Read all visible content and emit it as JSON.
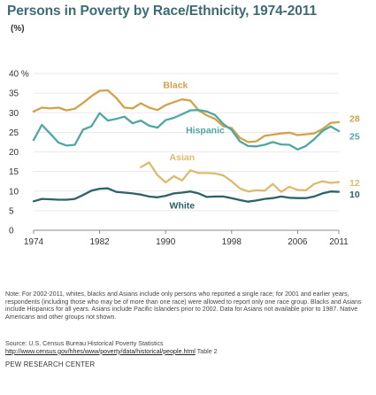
{
  "title": "Persons in Poverty by Race/Ethnicity, 1974-2011",
  "unit": "(%)",
  "note": "Note: For 2002-2011, whites, blacks and Asians include only persons who reported a single race; for 2001 and earlier years, respondents (including those who may be of more than one race) were allowed to report only one race group. Blacks and Asians include Hispanics for all years. Asians include Pacific Islanders prior to 2002. Data for Asians not available prior to 1987. Native Americans and other groups not shown.",
  "source": {
    "prefix": "Source: U.S. Census Bureau Historical Poverty Statistics",
    "url": "http://www.census.gov/hhes/www/poverty/data/historical/people.html",
    "suffix": " Table 2"
  },
  "org": "PEW RESEARCH CENTER",
  "colors": {
    "black": "#d2a24a",
    "hispanic": "#4ea7a2",
    "asian": "#dcbb6e",
    "white": "#2d6365",
    "grid": "#e3e3e3",
    "axis": "#888888"
  },
  "chart_data": {
    "type": "line",
    "title": "Persons in Poverty by Race/Ethnicity, 1974-2011",
    "ylabel": "(%)",
    "xlim": [
      1974,
      2011
    ],
    "ylim": [
      0,
      40
    ],
    "yticks": [
      0,
      5,
      10,
      15,
      20,
      25,
      30,
      35,
      40
    ],
    "ytick_labels": [
      "0",
      "5",
      "10",
      "15",
      "20",
      "25",
      "30",
      "35",
      "40 %"
    ],
    "xticks": [
      1974,
      1982,
      1990,
      1998,
      2006,
      2011
    ],
    "xtick_labels": [
      "1974",
      "1982",
      "1990",
      "1998",
      "2006",
      "2011"
    ],
    "grid": true,
    "series": [
      {
        "name": "Black",
        "key": "black",
        "x": [
          1974,
          1975,
          1976,
          1977,
          1978,
          1979,
          1980,
          1981,
          1982,
          1983,
          1984,
          1985,
          1986,
          1987,
          1988,
          1989,
          1990,
          1991,
          1992,
          1993,
          1994,
          1995,
          1996,
          1997,
          1998,
          1999,
          2000,
          2001,
          2002,
          2003,
          2004,
          2005,
          2006,
          2007,
          2008,
          2009,
          2010,
          2011
        ],
        "y": [
          30.3,
          31.3,
          31.1,
          31.3,
          30.6,
          31.0,
          32.5,
          34.2,
          35.6,
          35.7,
          33.8,
          31.3,
          31.1,
          32.4,
          31.3,
          30.7,
          31.9,
          32.7,
          33.4,
          33.1,
          30.6,
          29.3,
          28.4,
          26.5,
          26.1,
          23.6,
          22.5,
          22.7,
          24.1,
          24.4,
          24.7,
          24.9,
          24.3,
          24.5,
          24.7,
          25.8,
          27.4,
          27.6
        ],
        "end_label": "28"
      },
      {
        "name": "Hispanic",
        "key": "hispanic",
        "x": [
          1974,
          1975,
          1976,
          1977,
          1978,
          1979,
          1980,
          1981,
          1982,
          1983,
          1984,
          1985,
          1986,
          1987,
          1988,
          1989,
          1990,
          1991,
          1992,
          1993,
          1994,
          1995,
          1996,
          1997,
          1998,
          1999,
          2000,
          2001,
          2002,
          2003,
          2004,
          2005,
          2006,
          2007,
          2008,
          2009,
          2010,
          2011
        ],
        "y": [
          23.0,
          26.9,
          24.7,
          22.4,
          21.6,
          21.8,
          25.7,
          26.5,
          29.9,
          28.0,
          28.4,
          29.0,
          27.3,
          28.0,
          26.7,
          26.2,
          28.1,
          28.7,
          29.6,
          30.6,
          30.7,
          30.3,
          29.4,
          27.1,
          25.6,
          22.7,
          21.5,
          21.4,
          21.8,
          22.5,
          21.9,
          21.8,
          20.6,
          21.5,
          23.2,
          25.3,
          26.5,
          25.3
        ],
        "end_label": "25"
      },
      {
        "name": "Asian",
        "key": "asian",
        "x": [
          1987,
          1988,
          1989,
          1990,
          1991,
          1992,
          1993,
          1994,
          1995,
          1996,
          1997,
          1998,
          1999,
          2000,
          2001,
          2002,
          2003,
          2004,
          2005,
          2006,
          2007,
          2008,
          2009,
          2010,
          2011
        ],
        "y": [
          16.1,
          17.3,
          14.1,
          12.2,
          13.8,
          12.7,
          15.3,
          14.6,
          14.6,
          14.5,
          14.0,
          12.5,
          10.7,
          9.9,
          10.2,
          10.1,
          11.8,
          9.8,
          11.1,
          10.3,
          10.2,
          11.8,
          12.5,
          12.1,
          12.3
        ],
        "end_label": "12"
      },
      {
        "name": "White",
        "key": "white",
        "x": [
          1974,
          1975,
          1976,
          1977,
          1978,
          1979,
          1980,
          1981,
          1982,
          1983,
          1984,
          1985,
          1986,
          1987,
          1988,
          1989,
          1990,
          1991,
          1992,
          1993,
          1994,
          1995,
          1996,
          1997,
          1998,
          1999,
          2000,
          2001,
          2002,
          2003,
          2004,
          2005,
          2006,
          2007,
          2008,
          2009,
          2010,
          2011
        ],
        "y": [
          7.4,
          8.0,
          7.9,
          7.8,
          7.8,
          8.0,
          9.0,
          10.1,
          10.6,
          10.7,
          9.8,
          9.6,
          9.4,
          9.1,
          8.6,
          8.4,
          8.8,
          9.4,
          9.6,
          9.9,
          9.4,
          8.5,
          8.6,
          8.6,
          8.2,
          7.7,
          7.3,
          7.6,
          8.0,
          8.2,
          8.6,
          8.3,
          8.2,
          8.2,
          8.6,
          9.4,
          9.9,
          9.8
        ],
        "end_label": "10"
      }
    ],
    "series_labels": [
      {
        "name": "Black",
        "x": 1991.2,
        "y": 36.3
      },
      {
        "name": "Hispanic",
        "x": 1994.8,
        "y": 24.7
      },
      {
        "name": "Asian",
        "x": 1992.0,
        "y": 17.8
      },
      {
        "name": "White",
        "x": 1992.0,
        "y": 5.5
      }
    ]
  }
}
